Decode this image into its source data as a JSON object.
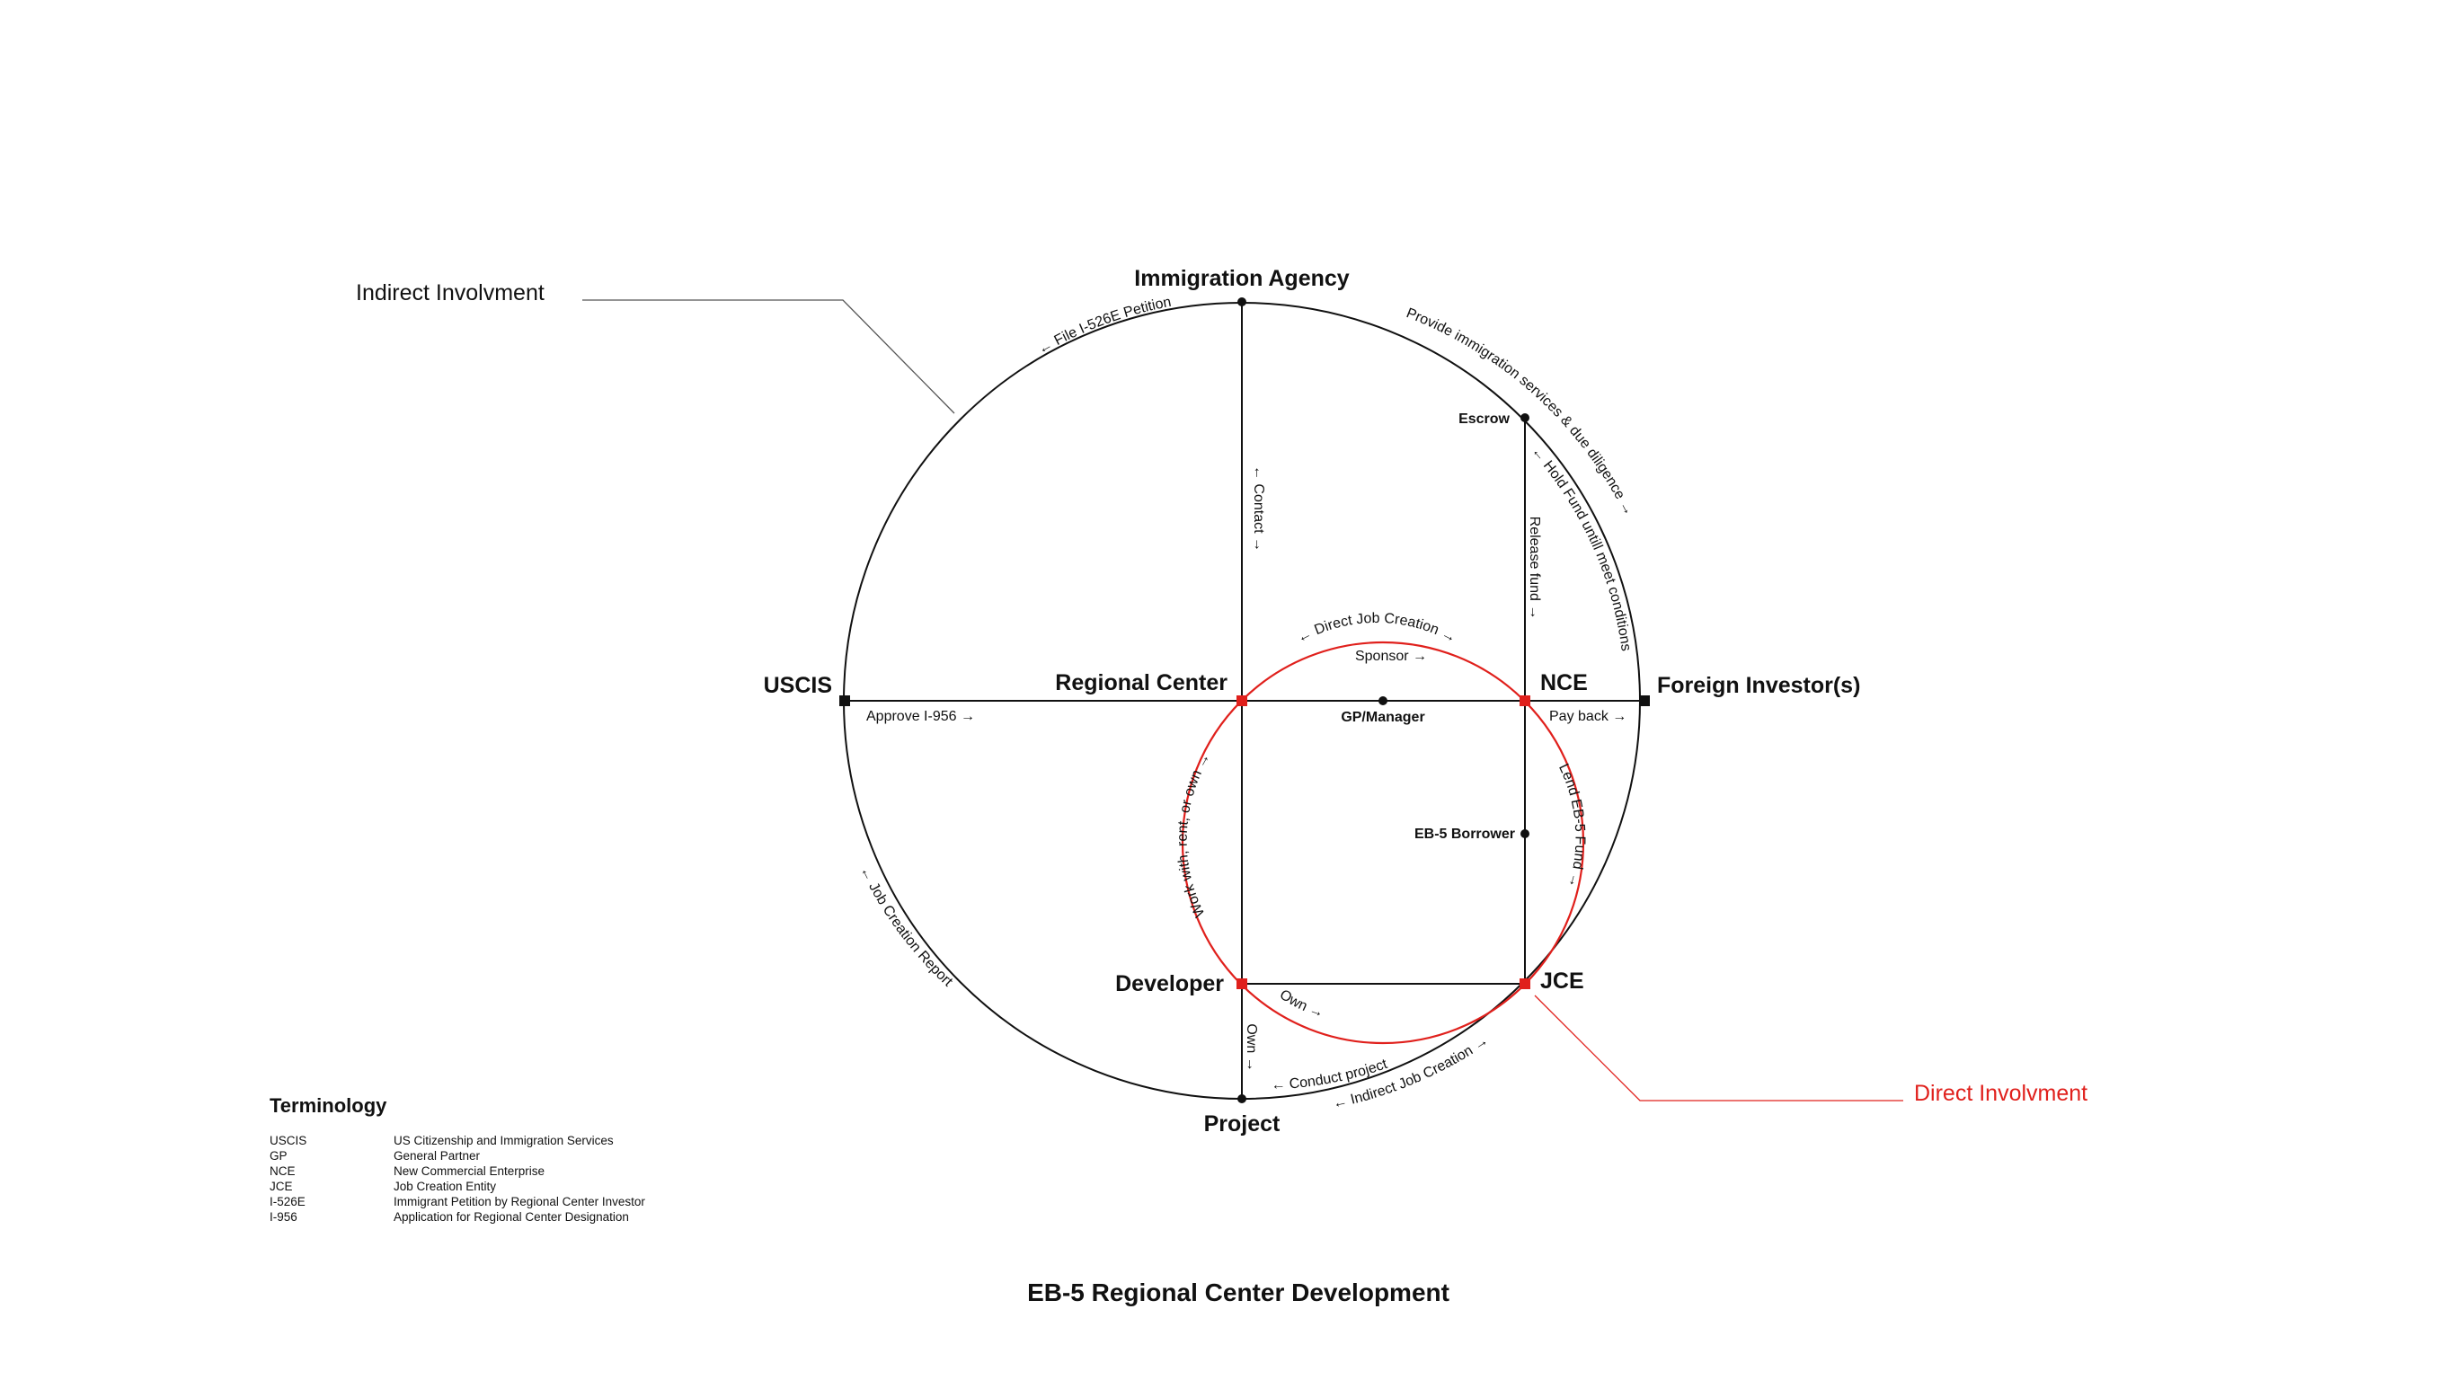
{
  "nodes": {
    "immigration_agency": "Immigration Agency",
    "uscis": "USCIS",
    "foreign_investors": "Foreign Investor(s)",
    "regional_center": "Regional Center",
    "nce": "NCE",
    "developer": "Developer",
    "jce": "JCE",
    "project": "Project",
    "escrow": "Escrow",
    "gp_manager": "GP/Manager",
    "eb5_borrower": "EB-5 Borrower"
  },
  "edge_labels": {
    "file_i526e": "← File I-526E Petition",
    "provide_services": "Provide immigration services & due diligence →",
    "hold_fund": "← Hold Fund untill meet conditions",
    "contact": "← Contact →",
    "release_fund": "Release fund →",
    "direct_job_creation": "← Direct Job Creation →",
    "sponsor": "Sponsor →",
    "approve_i956": "Approve I-956 →",
    "pay_back": "Pay back →",
    "lend_eb5": "Lend EB-5 Fund →",
    "work_with": "Work with, rent, or own →",
    "job_creation_report": "← Job Creation Report",
    "own_inner": "Own →",
    "own_vertical": "Own →",
    "conduct_project": "← Conduct project",
    "indirect_job_creation": "← Indirect Job Creation →"
  },
  "callouts": {
    "indirect": "Indirect Involvment",
    "direct": "Direct Involvment"
  },
  "terminology": {
    "title": "Terminology",
    "items": [
      {
        "abbr": "USCIS",
        "meaning": "US Citizenship and Immigration Services"
      },
      {
        "abbr": "GP",
        "meaning": "General Partner"
      },
      {
        "abbr": "NCE",
        "meaning": "New Commercial Enterprise"
      },
      {
        "abbr": "JCE",
        "meaning": "Job Creation Entity"
      },
      {
        "abbr": "I-526E",
        "meaning": "Immigrant Petition by Regional Center Investor"
      },
      {
        "abbr": "I-956",
        "meaning": "Application for Regional Center Designation"
      }
    ]
  },
  "title": "EB-5 Regional Center Development",
  "colors": {
    "line": "#111111",
    "direct": "#e0201c",
    "callout_indirect_line": "#555555"
  }
}
